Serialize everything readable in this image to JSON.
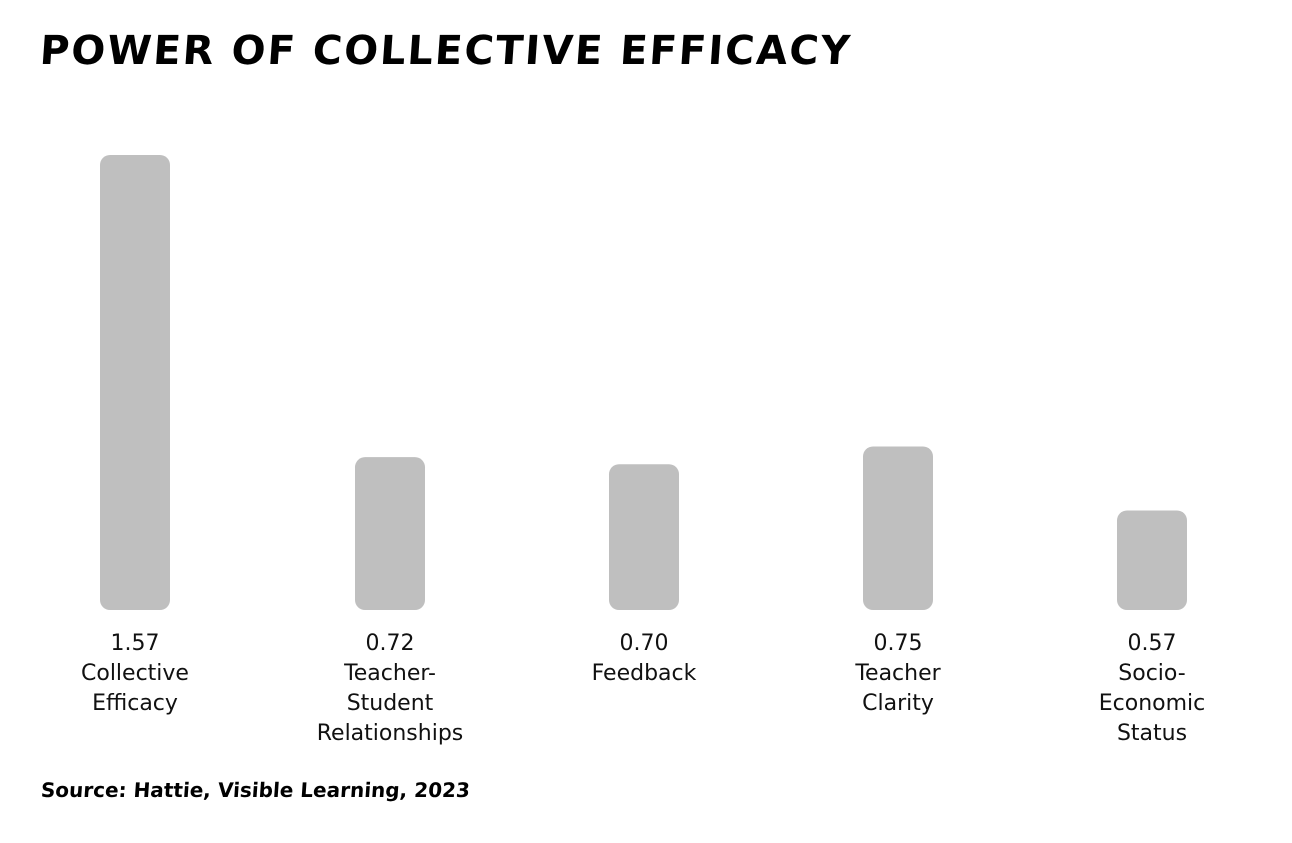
{
  "chart_data": {
    "type": "bar",
    "title": "POWER OF COLLECTIVE EFFICACY",
    "categories": [
      "Collective Efficacy",
      "Teacher-Student Relationships",
      "Feedback",
      "Teacher Clarity",
      "Socio-Economic Status"
    ],
    "category_label_lines": [
      [
        "Collective",
        "Efficacy"
      ],
      [
        "Teacher-",
        "Student",
        "Relationships"
      ],
      [
        "Feedback"
      ],
      [
        "Teacher",
        "Clarity"
      ],
      [
        "Socio-",
        "Economic",
        "Status"
      ]
    ],
    "values": [
      1.57,
      0.72,
      0.7,
      0.75,
      0.57
    ],
    "value_labels": [
      "1.57",
      "0.72",
      "0.70",
      "0.75",
      "0.57"
    ],
    "bar_color": "#bfbfbf",
    "ylim": [
      0.29,
      1.57
    ],
    "grid": false,
    "legend": "none",
    "source": "Source: Hattie, Visible Learning, 2023"
  }
}
